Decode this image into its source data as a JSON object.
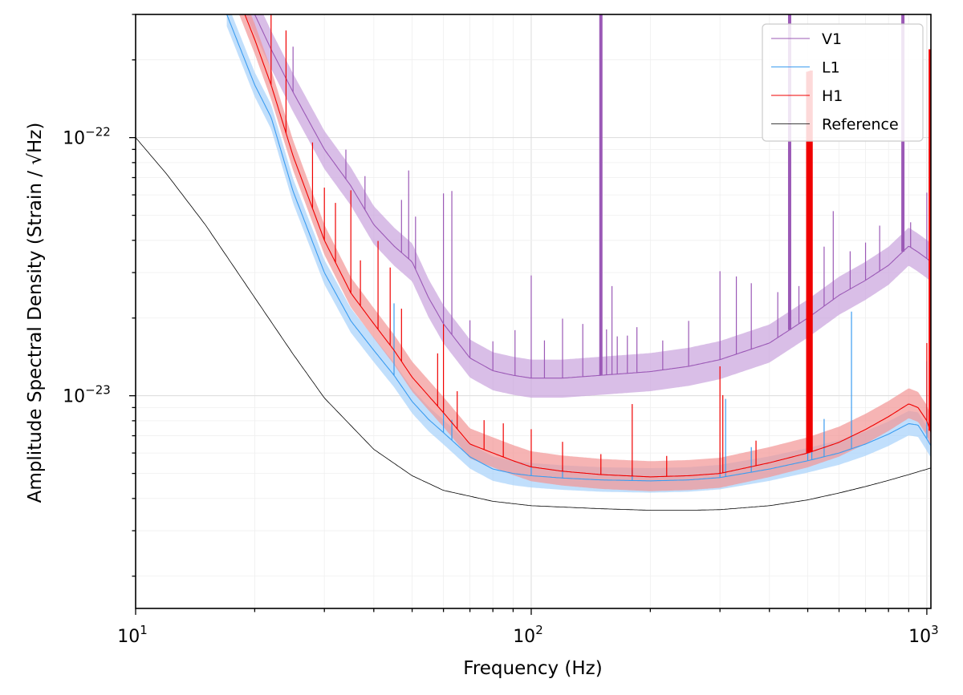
{
  "chart_data": {
    "type": "line",
    "xlabel": "Frequency (Hz)",
    "ylabel": "Amplitude Spectral Density (Strain / √Hz)",
    "xscale": "log",
    "yscale": "log",
    "xlim": [
      10,
      1024
    ],
    "ylim": [
      1.5e-24,
      3e-22
    ],
    "x_ticks": [
      {
        "value": 10,
        "base": "10",
        "exp": "1"
      },
      {
        "value": 100,
        "base": "10",
        "exp": "2"
      },
      {
        "value": 1000,
        "base": "10",
        "exp": "3"
      }
    ],
    "y_ticks": [
      {
        "value": 1e-23,
        "base": "10",
        "exp": "−23"
      },
      {
        "value": 1e-22,
        "base": "10",
        "exp": "−22"
      }
    ],
    "grid": true,
    "legend_position": "top-right",
    "series": [
      {
        "name": "V1",
        "color": "#9b59b6",
        "band_color": "#c9a3dd",
        "band_ratio": [
          0.84,
          1.18
        ],
        "x": [
          17,
          20,
          22,
          25,
          30,
          35,
          40,
          45,
          50,
          55,
          60,
          70,
          80,
          90,
          100,
          120,
          150,
          200,
          250,
          300,
          400,
          500,
          600,
          700,
          800,
          900,
          950,
          1000,
          1024
        ],
        "y": [
          5e-22,
          3e-22,
          2.2e-22,
          1.5e-22,
          9e-23,
          6.5e-23,
          4.6e-23,
          3.8e-23,
          3.3e-23,
          2.4e-23,
          1.9e-23,
          1.4e-23,
          1.25e-23,
          1.2e-23,
          1.17e-23,
          1.17e-23,
          1.2e-23,
          1.24e-23,
          1.3e-23,
          1.38e-23,
          1.6e-23,
          2e-23,
          2.45e-23,
          2.8e-23,
          3.2e-23,
          3.8e-23,
          3.6e-23,
          3.4e-23,
          3.3e-23
        ],
        "lines": [
          [
            20,
            1.4
          ],
          [
            25,
            1.5
          ],
          [
            34,
            1.3
          ],
          [
            38,
            1.35
          ],
          [
            47,
            1.6
          ],
          [
            49,
            2.2
          ],
          [
            51,
            1.6
          ],
          [
            60,
            3.2
          ],
          [
            63,
            3.6
          ],
          [
            70,
            1.4
          ],
          [
            80,
            1.3
          ],
          [
            91,
            1.5
          ],
          [
            100,
            2.5
          ],
          [
            108,
            1.4
          ],
          [
            120,
            1.7
          ],
          [
            135,
            1.6
          ],
          [
            150,
            26
          ],
          [
            155,
            1.5
          ],
          [
            160,
            2.2
          ],
          [
            165,
            1.4
          ],
          [
            175,
            1.4
          ],
          [
            185,
            1.5
          ],
          [
            215,
            1.3
          ],
          [
            250,
            1.5
          ],
          [
            300,
            2.2
          ],
          [
            330,
            2.0
          ],
          [
            360,
            1.8
          ],
          [
            420,
            1.5
          ],
          [
            450,
            20
          ],
          [
            475,
            1.4
          ],
          [
            550,
            1.7
          ],
          [
            580,
            2.2
          ],
          [
            640,
            1.4
          ],
          [
            700,
            1.4
          ],
          [
            760,
            1.5
          ],
          [
            870,
            20
          ],
          [
            910,
            1.25
          ],
          [
            1000,
            1.8
          ]
        ]
      },
      {
        "name": "L1",
        "color": "#3b9cf0",
        "band_color": "#a6d2fb",
        "band_ratio": [
          0.9,
          1.12
        ],
        "x": [
          17,
          20,
          22,
          25,
          30,
          35,
          40,
          45,
          50,
          55,
          60,
          70,
          80,
          90,
          100,
          120,
          150,
          200,
          250,
          300,
          400,
          500,
          600,
          700,
          800,
          900,
          950,
          1000,
          1024
        ],
        "y": [
          3e-22,
          1.6e-22,
          1.2e-22,
          6.2e-23,
          3e-23,
          1.95e-23,
          1.5e-23,
          1.2e-23,
          9.5e-24,
          8.1e-24,
          7.2e-24,
          5.8e-24,
          5.2e-24,
          5e-24,
          4.9e-24,
          4.8e-24,
          4.72e-24,
          4.68e-24,
          4.72e-24,
          4.82e-24,
          5.2e-24,
          5.6e-24,
          6e-24,
          6.5e-24,
          7.1e-24,
          7.8e-24,
          7.7e-24,
          6.8e-24,
          6.4e-24
        ],
        "lines": [
          [
            45,
            1.9
          ],
          [
            60,
            1.4
          ],
          [
            63,
            1.2
          ],
          [
            100,
            1.15
          ],
          [
            120,
            1.1
          ],
          [
            180,
            1.1
          ],
          [
            300,
            1.25
          ],
          [
            310,
            2.0
          ],
          [
            360,
            1.25
          ],
          [
            500,
            1.5
          ],
          [
            512,
            1.3
          ],
          [
            550,
            1.4
          ],
          [
            645,
            3.4
          ],
          [
            1000,
            2.0
          ]
        ]
      },
      {
        "name": "H1",
        "color": "#f00000",
        "band_color": "#f29494",
        "band_ratio": [
          0.88,
          1.15
        ],
        "x": [
          17,
          20,
          22,
          25,
          30,
          35,
          40,
          45,
          50,
          55,
          60,
          70,
          80,
          90,
          100,
          120,
          150,
          200,
          250,
          300,
          400,
          500,
          600,
          700,
          800,
          900,
          950,
          1000,
          1024
        ],
        "y": [
          4.5e-22,
          2.4e-22,
          1.6e-22,
          8.5e-23,
          4e-23,
          2.5e-23,
          1.9e-23,
          1.5e-23,
          1.18e-23,
          1e-23,
          8.6e-24,
          6.5e-24,
          6e-24,
          5.6e-24,
          5.3e-24,
          5.1e-24,
          4.95e-24,
          4.85e-24,
          4.9e-24,
          5e-24,
          5.5e-24,
          6e-24,
          6.6e-24,
          7.4e-24,
          8.3e-24,
          9.3e-24,
          9e-24,
          8e-24,
          7.2e-24
        ],
        "lines": [
          [
            22,
            3
          ],
          [
            24,
            2.5
          ],
          [
            28,
            1.8
          ],
          [
            30,
            1.6
          ],
          [
            32,
            1.7
          ],
          [
            35,
            2.5
          ],
          [
            37,
            1.5
          ],
          [
            41,
            2.2
          ],
          [
            44,
            2.0
          ],
          [
            47,
            1.6
          ],
          [
            58,
            1.6
          ],
          [
            60,
            2.2
          ],
          [
            65,
            1.4
          ],
          [
            76,
            1.3
          ],
          [
            85,
            1.35
          ],
          [
            100,
            1.4
          ],
          [
            120,
            1.3
          ],
          [
            150,
            1.2
          ],
          [
            180,
            1.9
          ],
          [
            220,
            1.2
          ],
          [
            300,
            2.6
          ],
          [
            305,
            2.0
          ],
          [
            370,
            1.25
          ],
          [
            500,
            30
          ],
          [
            505,
            30
          ],
          [
            510,
            30
          ],
          [
            1000,
            2.0
          ],
          [
            1020,
            30
          ]
        ]
      },
      {
        "name": "Reference",
        "color": "#000000",
        "x": [
          10,
          12,
          15,
          20,
          25,
          30,
          40,
          50,
          60,
          80,
          100,
          150,
          200,
          250,
          300,
          400,
          500,
          600,
          700,
          800,
          900,
          1024
        ],
        "y": [
          1e-22,
          7.2e-23,
          4.6e-23,
          2.4e-23,
          1.45e-23,
          9.8e-24,
          6.2e-24,
          4.9e-24,
          4.3e-24,
          3.9e-24,
          3.75e-24,
          3.65e-24,
          3.6e-24,
          3.6e-24,
          3.62e-24,
          3.75e-24,
          3.95e-24,
          4.2e-24,
          4.45e-24,
          4.7e-24,
          4.95e-24,
          5.25e-24
        ]
      }
    ]
  }
}
